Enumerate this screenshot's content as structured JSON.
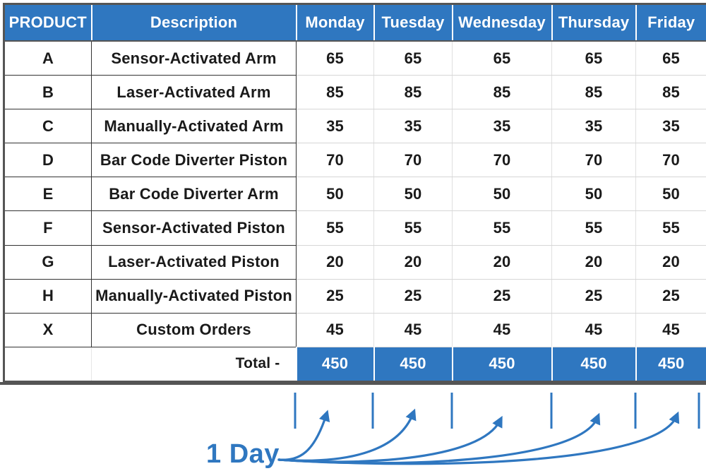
{
  "table": {
    "headers": {
      "product": "PRODUCT",
      "description": "Description",
      "days": [
        "Monday",
        "Tuesday",
        "Wednesday",
        "Thursday",
        "Friday"
      ]
    },
    "rows": [
      {
        "product": "A",
        "description": "Sensor-Activated Arm",
        "values": [
          "65",
          "65",
          "65",
          "65",
          "65"
        ]
      },
      {
        "product": "B",
        "description": "Laser-Activated Arm",
        "values": [
          "85",
          "85",
          "85",
          "85",
          "85"
        ]
      },
      {
        "product": "C",
        "description": "Manually-Activated Arm",
        "values": [
          "35",
          "35",
          "35",
          "35",
          "35"
        ]
      },
      {
        "product": "D",
        "description": "Bar Code Diverter Piston",
        "values": [
          "70",
          "70",
          "70",
          "70",
          "70"
        ]
      },
      {
        "product": "E",
        "description": "Bar Code Diverter Arm",
        "values": [
          "50",
          "50",
          "50",
          "50",
          "50"
        ]
      },
      {
        "product": "F",
        "description": "Sensor-Activated Piston",
        "values": [
          "55",
          "55",
          "55",
          "55",
          "55"
        ]
      },
      {
        "product": "G",
        "description": "Laser-Activated Piston",
        "values": [
          "20",
          "20",
          "20",
          "20",
          "20"
        ]
      },
      {
        "product": "H",
        "description": "Manually-Activated Piston",
        "values": [
          "25",
          "25",
          "25",
          "25",
          "25"
        ]
      },
      {
        "product": "X",
        "description": "Custom Orders",
        "values": [
          "45",
          "45",
          "45",
          "45",
          "45"
        ]
      }
    ],
    "total": {
      "label": "Total -",
      "values": [
        "450",
        "450",
        "450",
        "450",
        "450"
      ]
    }
  },
  "annotation": {
    "label": "1 Day",
    "color": "#2f77c0"
  },
  "colors": {
    "header_bg": "#2f77c0",
    "header_text": "#ffffff",
    "border": "#555555"
  }
}
